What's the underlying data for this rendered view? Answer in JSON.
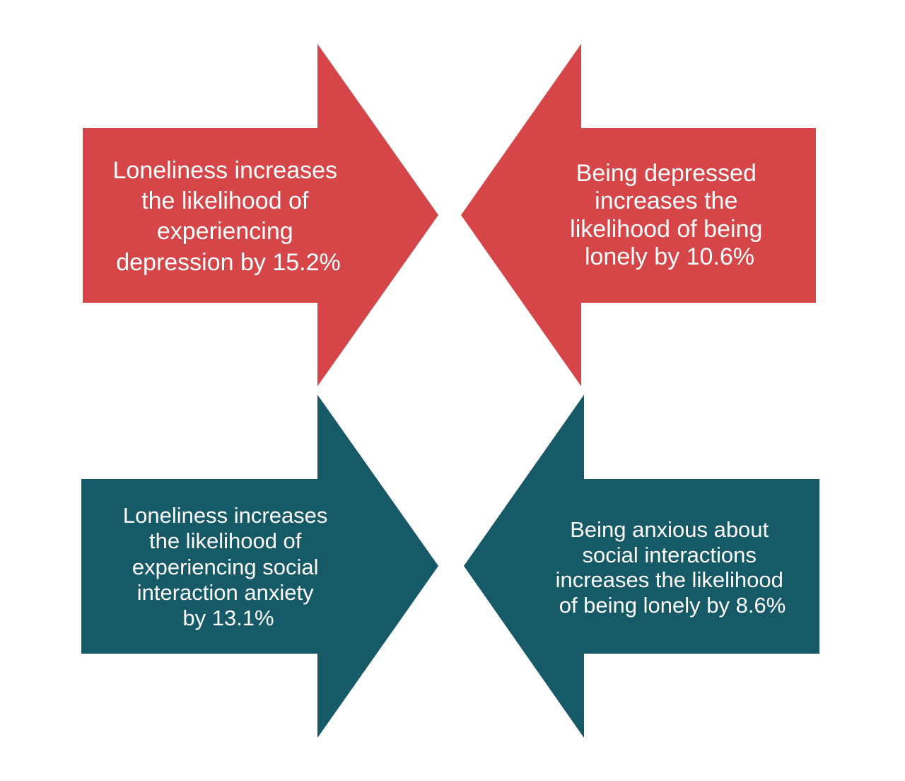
{
  "colors": {
    "red_arrow": "#d64548",
    "teal_arrow": "#155a66",
    "text": "#ffffff",
    "background": "#ffffff"
  },
  "arrows": [
    {
      "id": "loneliness-to-depression",
      "direction": "right",
      "color": "red_arrow",
      "lines": [
        "Loneliness increases",
        "the likelihood of",
        "experiencing",
        "depression by 15.2%"
      ]
    },
    {
      "id": "depression-to-loneliness",
      "direction": "left",
      "color": "red_arrow",
      "lines": [
        "Being depressed",
        "increases the",
        "likelihood of being",
        "lonely by 10.6%"
      ]
    },
    {
      "id": "loneliness-to-anxiety",
      "direction": "right",
      "color": "teal_arrow",
      "lines": [
        "Loneliness increases",
        "the likelihood of",
        "experiencing social",
        "interaction anxiety",
        "by 13.1%"
      ]
    },
    {
      "id": "anxiety-to-loneliness",
      "direction": "left",
      "color": "teal_arrow",
      "lines": [
        "Being anxious about",
        "social interactions",
        "increases the likelihood",
        "of being lonely by 8.6%"
      ]
    }
  ]
}
